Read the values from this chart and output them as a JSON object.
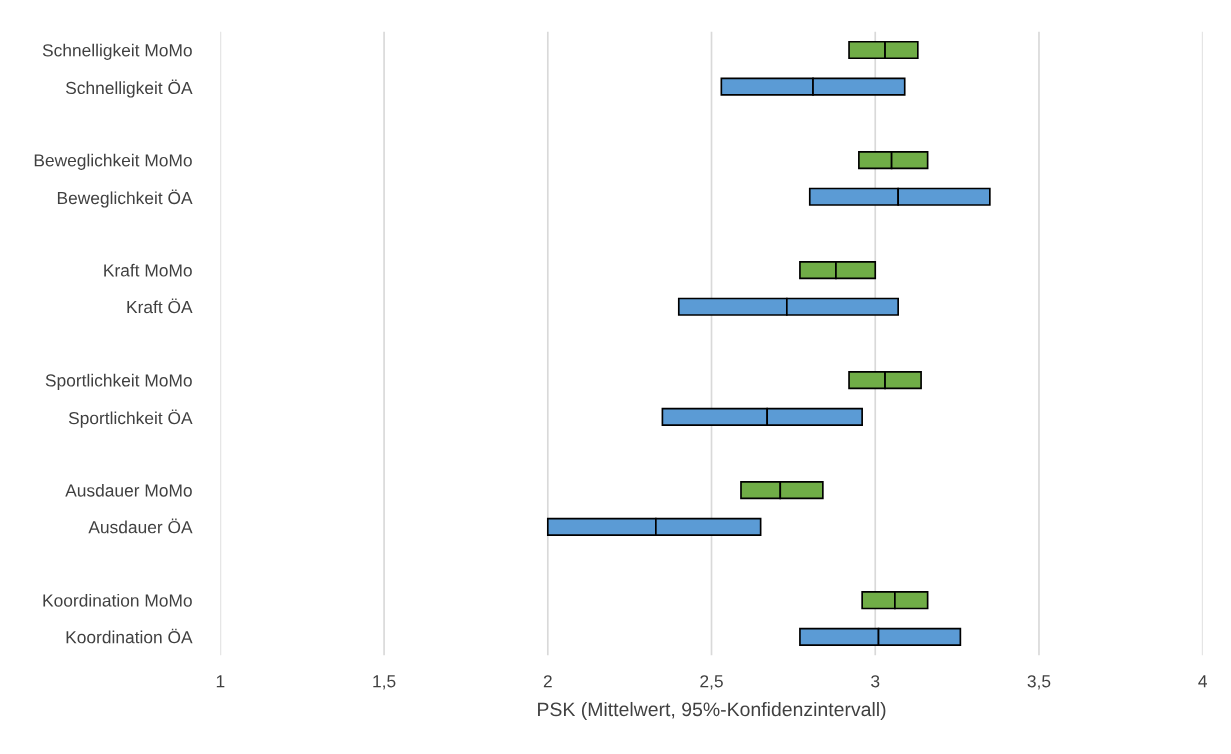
{
  "chart_data": {
    "type": "bar",
    "orientation": "horizontal",
    "xlabel": "PSK (Mittelwert, 95%-Konfidenzintervall)",
    "categories": [
      "Schnelligkeit MoMo",
      "Schnelligkeit ÖA",
      null,
      "Beweglichkeit MoMo",
      "Beweglichkeit ÖA",
      null,
      "Kraft MoMo",
      "Kraft ÖA",
      null,
      "Sportlichkeit MoMo",
      "Sportlichkeit ÖA",
      null,
      "Ausdauer MoMo",
      "Ausdauer ÖA",
      null,
      "Koordination MoMo",
      "Koordination ÖA"
    ],
    "series": [
      {
        "colors": [
          "#70ad47",
          "#5b9bd5",
          null,
          "#70ad47",
          "#5b9bd5",
          null,
          "#70ad47",
          "#5b9bd5",
          null,
          "#70ad47",
          "#5b9bd5",
          null,
          "#70ad47",
          "#5b9bd5",
          null,
          "#70ad47",
          "#5b9bd5"
        ],
        "base": [
          2.92,
          2.53,
          null,
          2.95,
          2.8,
          null,
          2.77,
          2.4,
          null,
          2.92,
          2.35,
          null,
          2.59,
          2.0,
          null,
          2.96,
          2.77
        ],
        "values": [
          0.11,
          0.28,
          null,
          0.1,
          0.27,
          null,
          0.11,
          0.33,
          null,
          0.11,
          0.32,
          null,
          0.12,
          0.33,
          null,
          0.1,
          0.24
        ]
      },
      {
        "colors": [
          "#70ad47",
          "#5b9bd5",
          null,
          "#70ad47",
          "#5b9bd5",
          null,
          "#70ad47",
          "#5b9bd5",
          null,
          "#70ad47",
          "#5b9bd5",
          null,
          "#70ad47",
          "#5b9bd5",
          null,
          "#70ad47",
          "#5b9bd5"
        ],
        "base": [
          3.03,
          2.81,
          null,
          3.05,
          3.07,
          null,
          2.88,
          2.73,
          null,
          3.03,
          2.67,
          null,
          2.71,
          2.33,
          null,
          3.06,
          3.01
        ],
        "values": [
          0.1,
          0.28,
          null,
          0.11,
          0.28,
          null,
          0.12,
          0.34,
          null,
          0.11,
          0.29,
          null,
          0.13,
          0.32,
          null,
          0.1,
          0.25
        ]
      }
    ],
    "xlim": [
      1,
      4
    ],
    "xticks": [
      {
        "value": 1,
        "label": "1"
      },
      {
        "value": 1.5,
        "label": "1,5"
      },
      {
        "value": 2,
        "label": "2"
      },
      {
        "value": 2.5,
        "label": "2,5"
      },
      {
        "value": 3,
        "label": "3"
      },
      {
        "value": 3.5,
        "label": "3,5"
      },
      {
        "value": 4,
        "label": "4"
      }
    ],
    "grid": "x"
  }
}
